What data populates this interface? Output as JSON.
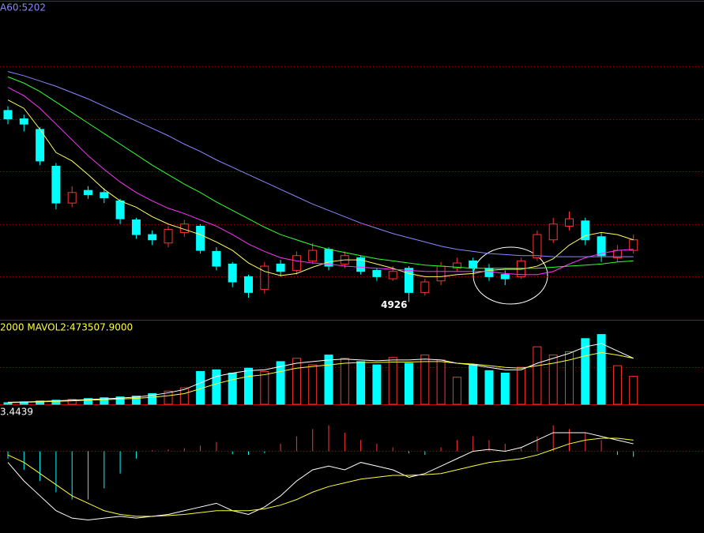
{
  "chart_data": [
    {
      "type": "candlestick",
      "title": "A60:5202",
      "ylim": [
        4909,
        5213
      ],
      "yticks": [
        4950,
        5000,
        5050,
        5100,
        5150
      ],
      "grid": true,
      "up_color": "#ff3232",
      "down_color": "#00ffff",
      "annotation_index": 25,
      "open": [
        5108,
        5100,
        5090,
        5055,
        5020,
        5032,
        5030,
        5022,
        5004,
        4990,
        4982,
        4992,
        4998,
        4974,
        4962,
        4950,
        4938,
        4962,
        4956,
        4965,
        4976,
        4962,
        4968,
        4956,
        4948,
        4958,
        4935,
        4946,
        4958,
        4965,
        4958,
        4952,
        4950,
        4968,
        4985,
        4998,
        5003,
        4988,
        4968,
        4975
      ],
      "high": [
        5112,
        5104,
        5092,
        5058,
        5036,
        5036,
        5034,
        5024,
        5006,
        4994,
        4998,
        5004,
        5000,
        4978,
        4964,
        4952,
        4964,
        4966,
        4974,
        4982,
        4978,
        4974,
        4970,
        4958,
        4960,
        4960,
        4948,
        4964,
        4968,
        4968,
        4962,
        4956,
        4968,
        4994,
        5006,
        5012,
        5006,
        4992,
        4980,
        4990
      ],
      "low": [
        5095,
        5088,
        5056,
        5014,
        5016,
        5024,
        5020,
        5000,
        4986,
        4980,
        4978,
        4988,
        4972,
        4956,
        4940,
        4930,
        4934,
        4950,
        4952,
        4962,
        4956,
        4958,
        4952,
        4946,
        4946,
        4926,
        4932,
        4942,
        4955,
        4954,
        4946,
        4942,
        4948,
        4965,
        4982,
        4994,
        4980,
        4964,
        4964,
        4972
      ],
      "close": [
        5100,
        5095,
        5060,
        5020,
        5030,
        5028,
        5025,
        5005,
        4990,
        4985,
        4995,
        5000,
        4975,
        4960,
        4945,
        4935,
        4960,
        4955,
        4970,
        4975,
        4960,
        4970,
        4955,
        4950,
        4955,
        4935,
        4945,
        4960,
        4963,
        4958,
        4950,
        4948,
        4965,
        4990,
        5000,
        5005,
        4985,
        4970,
        4975,
        4985
      ],
      "series": [
        {
          "color": "#ffff66",
          "values": [
            5118,
            5110,
            5090,
            5068,
            5060,
            5047,
            5033,
            5022,
            5016,
            5007,
            5000,
            4995,
            4990,
            4983,
            4975,
            4963,
            4955,
            4951,
            4953,
            4959,
            4964,
            4966,
            4966,
            4962,
            4958,
            4953,
            4950,
            4950,
            4952,
            4953,
            4956,
            4957,
            4957,
            4960,
            4967,
            4980,
            4989,
            4992,
            4990,
            4985
          ]
        },
        {
          "color": "#ff33ff",
          "values": [
            5130,
            5122,
            5110,
            5095,
            5080,
            5065,
            5052,
            5040,
            5030,
            5022,
            5015,
            5010,
            5004,
            4998,
            4990,
            4981,
            4974,
            4968,
            4965,
            4963,
            4962,
            4960,
            4959,
            4958,
            4957,
            4956,
            4955,
            4955,
            4955,
            4955,
            4955,
            4953,
            4952,
            4952,
            4955,
            4962,
            4968,
            4972,
            4975,
            4976
          ]
        },
        {
          "color": "#33ff33",
          "values": [
            5140,
            5134,
            5126,
            5116,
            5106,
            5096,
            5086,
            5076,
            5066,
            5056,
            5047,
            5038,
            5030,
            5021,
            5013,
            5005,
            4997,
            4990,
            4985,
            4980,
            4976,
            4973,
            4970,
            4967,
            4965,
            4963,
            4961,
            4960,
            4959,
            4958,
            4958,
            4958,
            4958,
            4958,
            4959,
            4960,
            4961,
            4962,
            4964,
            4965
          ]
        },
        {
          "color": "#8888ff",
          "values": [
            5145,
            5141,
            5136,
            5131,
            5125,
            5119,
            5112,
            5105,
            5098,
            5091,
            5084,
            5076,
            5069,
            5061,
            5054,
            5047,
            5040,
            5033,
            5026,
            5019,
            5013,
            5007,
            5001,
            4996,
            4991,
            4987,
            4983,
            4979,
            4976,
            4974,
            4972,
            4971,
            4970,
            4970,
            4969,
            4969,
            4969,
            4969,
            4969,
            4969
          ]
        }
      ]
    },
    {
      "type": "volume",
      "title": "2000 MAVOL2:473507.9000",
      "ylim": [
        0,
        1000000
      ],
      "yticks": [
        450000
      ],
      "grid": true,
      "values": [
        20000,
        30000,
        40000,
        50000,
        60000,
        70000,
        80000,
        90000,
        100000,
        130000,
        160000,
        200000,
        400000,
        420000,
        380000,
        440000,
        400000,
        520000,
        560000,
        480000,
        600000,
        560000,
        520000,
        480000,
        570000,
        500000,
        600000,
        540000,
        330000,
        480000,
        410000,
        380000,
        450000,
        700000,
        600000,
        640000,
        800000,
        850000,
        470000,
        340000
      ],
      "series": [
        {
          "color": "#ffffff",
          "values": [
            25000,
            28000,
            35000,
            42000,
            50000,
            58000,
            66000,
            76000,
            88000,
            110000,
            140000,
            180000,
            260000,
            340000,
            380000,
            410000,
            420000,
            460000,
            500000,
            520000,
            540000,
            550000,
            540000,
            530000,
            540000,
            540000,
            550000,
            540000,
            500000,
            480000,
            450000,
            420000,
            420000,
            500000,
            560000,
            620000,
            700000,
            740000,
            650000,
            560000
          ]
        },
        {
          "color": "#ffff33",
          "values": [
            20000,
            24000,
            30000,
            36000,
            42000,
            50000,
            57000,
            64000,
            72000,
            85000,
            105000,
            130000,
            190000,
            250000,
            300000,
            340000,
            360000,
            400000,
            440000,
            460000,
            480000,
            500000,
            510000,
            510000,
            515000,
            515000,
            520000,
            520000,
            500000,
            490000,
            470000,
            450000,
            440000,
            470000,
            500000,
            540000,
            590000,
            630000,
            600000,
            560000
          ]
        }
      ]
    },
    {
      "type": "macd",
      "title": "3.4439",
      "ylim": [
        -22,
        12
      ],
      "yticks": [
        0
      ],
      "grid": true,
      "up_color": "#ff3232",
      "down_color": "#00ffff",
      "values": [
        -2,
        -5,
        -8,
        -11,
        -13,
        -13,
        -10,
        -6,
        -2,
        0.3,
        0.5,
        0.8,
        1.5,
        2.5,
        -0.8,
        -1,
        -0.5,
        2,
        4,
        6,
        7,
        5,
        3,
        2,
        1,
        -0.5,
        -1,
        1,
        3,
        4,
        3,
        2,
        1,
        4,
        7,
        6,
        5,
        3,
        -1,
        -1.5
      ],
      "series": [
        {
          "color": "#ffffff",
          "values": [
            -3,
            -8,
            -12,
            -16,
            -18,
            -18.5,
            -18,
            -17.5,
            -18,
            -17.5,
            -17,
            -16,
            -15,
            -14,
            -16,
            -17,
            -15,
            -12,
            -8,
            -5,
            -4,
            -5,
            -3,
            -4,
            -5,
            -7,
            -6,
            -4,
            -2,
            0,
            0.5,
            0,
            1,
            3,
            5,
            5,
            5,
            4,
            3,
            2
          ]
        },
        {
          "color": "#ffff33",
          "values": [
            -1,
            -3,
            -6,
            -9,
            -12,
            -14,
            -16,
            -17,
            -17.5,
            -17.5,
            -17.3,
            -17,
            -16.5,
            -16,
            -16,
            -16,
            -15.5,
            -14.5,
            -13,
            -11,
            -9.5,
            -8.5,
            -7.5,
            -7,
            -6.5,
            -6.5,
            -6.3,
            -6,
            -5,
            -4,
            -3,
            -2.5,
            -2,
            -1,
            0.5,
            2,
            3,
            3.5,
            3.5,
            3
          ]
        }
      ]
    }
  ]
}
